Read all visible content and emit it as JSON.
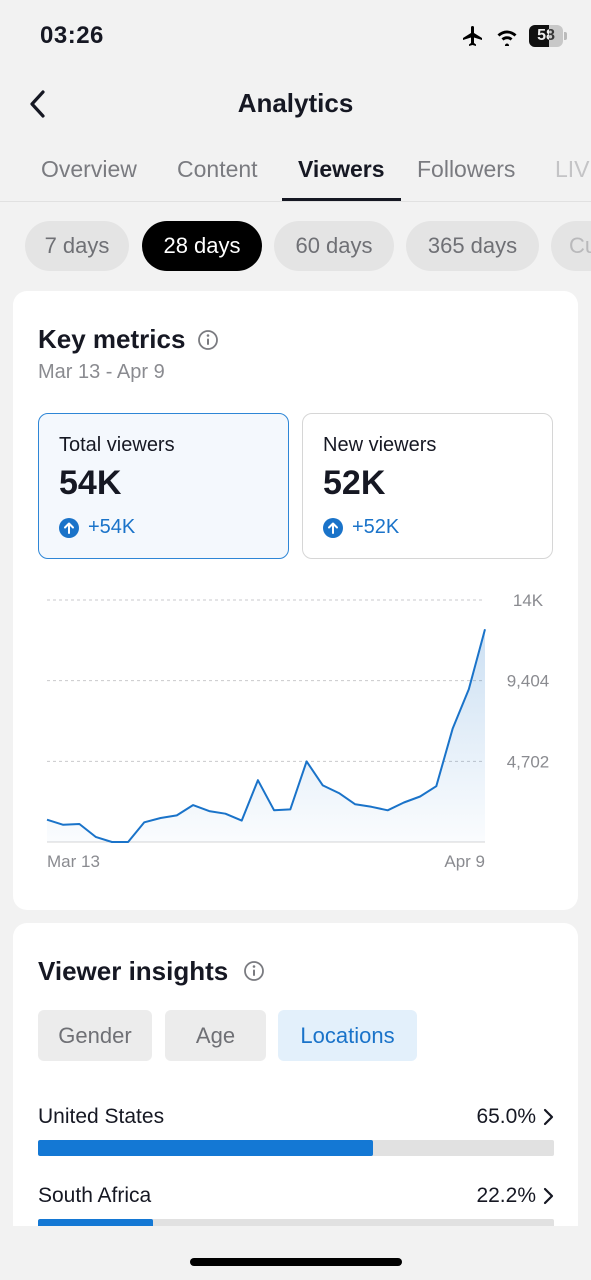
{
  "status_bar": {
    "time": "03:26",
    "battery_level": "58",
    "battery_fraction": 0.58
  },
  "header": {
    "title": "Analytics"
  },
  "tabs": [
    {
      "label": "Overview",
      "active": false
    },
    {
      "label": "Content",
      "active": false
    },
    {
      "label": "Viewers",
      "active": true
    },
    {
      "label": "Followers",
      "active": false
    },
    {
      "label": "LIVE",
      "active": false
    }
  ],
  "periods": [
    {
      "label": "7 days",
      "active": false
    },
    {
      "label": "28 days",
      "active": true
    },
    {
      "label": "60 days",
      "active": false
    },
    {
      "label": "365 days",
      "active": false
    },
    {
      "label": "Custom",
      "active": false
    }
  ],
  "key_metrics": {
    "title": "Key metrics",
    "date_range": "Mar 13 - Apr 9",
    "metrics": [
      {
        "label": "Total viewers",
        "value": "54K",
        "change": "+54K",
        "selected": true
      },
      {
        "label": "New viewers",
        "value": "52K",
        "change": "+52K",
        "selected": false
      }
    ]
  },
  "chart_data": {
    "type": "area",
    "series": [
      {
        "values": [
          1300,
          1000,
          1050,
          300,
          0,
          0,
          1150,
          1400,
          1550,
          2150,
          1800,
          1650,
          1250,
          3600,
          1850,
          1900,
          4700,
          3300,
          2850,
          2200,
          2050,
          1850,
          2300,
          2650,
          3250,
          6600,
          8900,
          12400
        ]
      }
    ],
    "x_tick_labels": [
      "Mar 13",
      "Apr 9"
    ],
    "y_tick_labels": [
      "14K",
      "9,404",
      "4,702"
    ],
    "y_ticks": [
      14106,
      9404,
      4702
    ],
    "ylim": [
      0,
      14106
    ],
    "grid": true,
    "line_color": "#1a73c9"
  },
  "viewer_insights": {
    "title": "Viewer insights",
    "tabs": [
      {
        "label": "Gender",
        "active": false
      },
      {
        "label": "Age",
        "active": false
      },
      {
        "label": "Locations",
        "active": true
      }
    ],
    "locations": [
      {
        "name": "United States",
        "percent": "65.0%",
        "fraction": 0.65
      },
      {
        "name": "South Africa",
        "percent": "22.2%",
        "fraction": 0.222
      }
    ]
  }
}
